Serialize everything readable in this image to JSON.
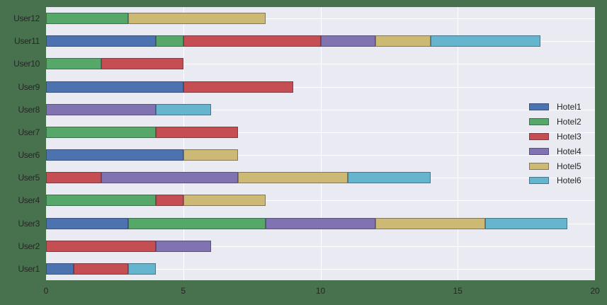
{
  "chart_data": {
    "type": "bar",
    "orientation": "horizontal",
    "stacked": true,
    "title": "",
    "xlabel": "",
    "ylabel": "",
    "xlim": [
      0,
      20
    ],
    "xticks": [
      "0",
      "5",
      "10",
      "15",
      "20"
    ],
    "grid": true,
    "legend_position": "center right",
    "categories": [
      "User1",
      "User2",
      "User3",
      "User4",
      "User5",
      "User6",
      "User7",
      "User8",
      "User9",
      "User10",
      "User11",
      "User12"
    ],
    "series": [
      {
        "name": "Hotel1",
        "color": "#4c72b0",
        "values": [
          1,
          0,
          3,
          0,
          0,
          5,
          0,
          0,
          5,
          0,
          4,
          0
        ]
      },
      {
        "name": "Hotel2",
        "color": "#55a868",
        "values": [
          0,
          0,
          5,
          4,
          0,
          0,
          4,
          0,
          0,
          2,
          1,
          3
        ]
      },
      {
        "name": "Hotel3",
        "color": "#c44e52",
        "values": [
          2,
          4,
          0,
          1,
          2,
          0,
          3,
          0,
          4,
          3,
          5,
          0
        ]
      },
      {
        "name": "Hotel4",
        "color": "#8172b2",
        "values": [
          0,
          2,
          4,
          0,
          5,
          0,
          0,
          4,
          0,
          0,
          2,
          0
        ]
      },
      {
        "name": "Hotel5",
        "color": "#ccb974",
        "values": [
          0,
          0,
          4,
          3,
          4,
          2,
          0,
          0,
          0,
          0,
          2,
          5
        ]
      },
      {
        "name": "Hotel6",
        "color": "#64b5cd",
        "values": [
          1,
          0,
          3,
          0,
          3,
          0,
          0,
          2,
          0,
          0,
          4,
          0
        ]
      }
    ]
  },
  "labels": {
    "users": [
      "User1",
      "User2",
      "User3",
      "User4",
      "User5",
      "User6",
      "User7",
      "User8",
      "User9",
      "User10",
      "User11",
      "User12"
    ],
    "xticks": [
      "0",
      "5",
      "10",
      "15",
      "20"
    ],
    "legend": [
      "Hotel1",
      "Hotel2",
      "Hotel3",
      "Hotel4",
      "Hotel5",
      "Hotel6"
    ]
  }
}
